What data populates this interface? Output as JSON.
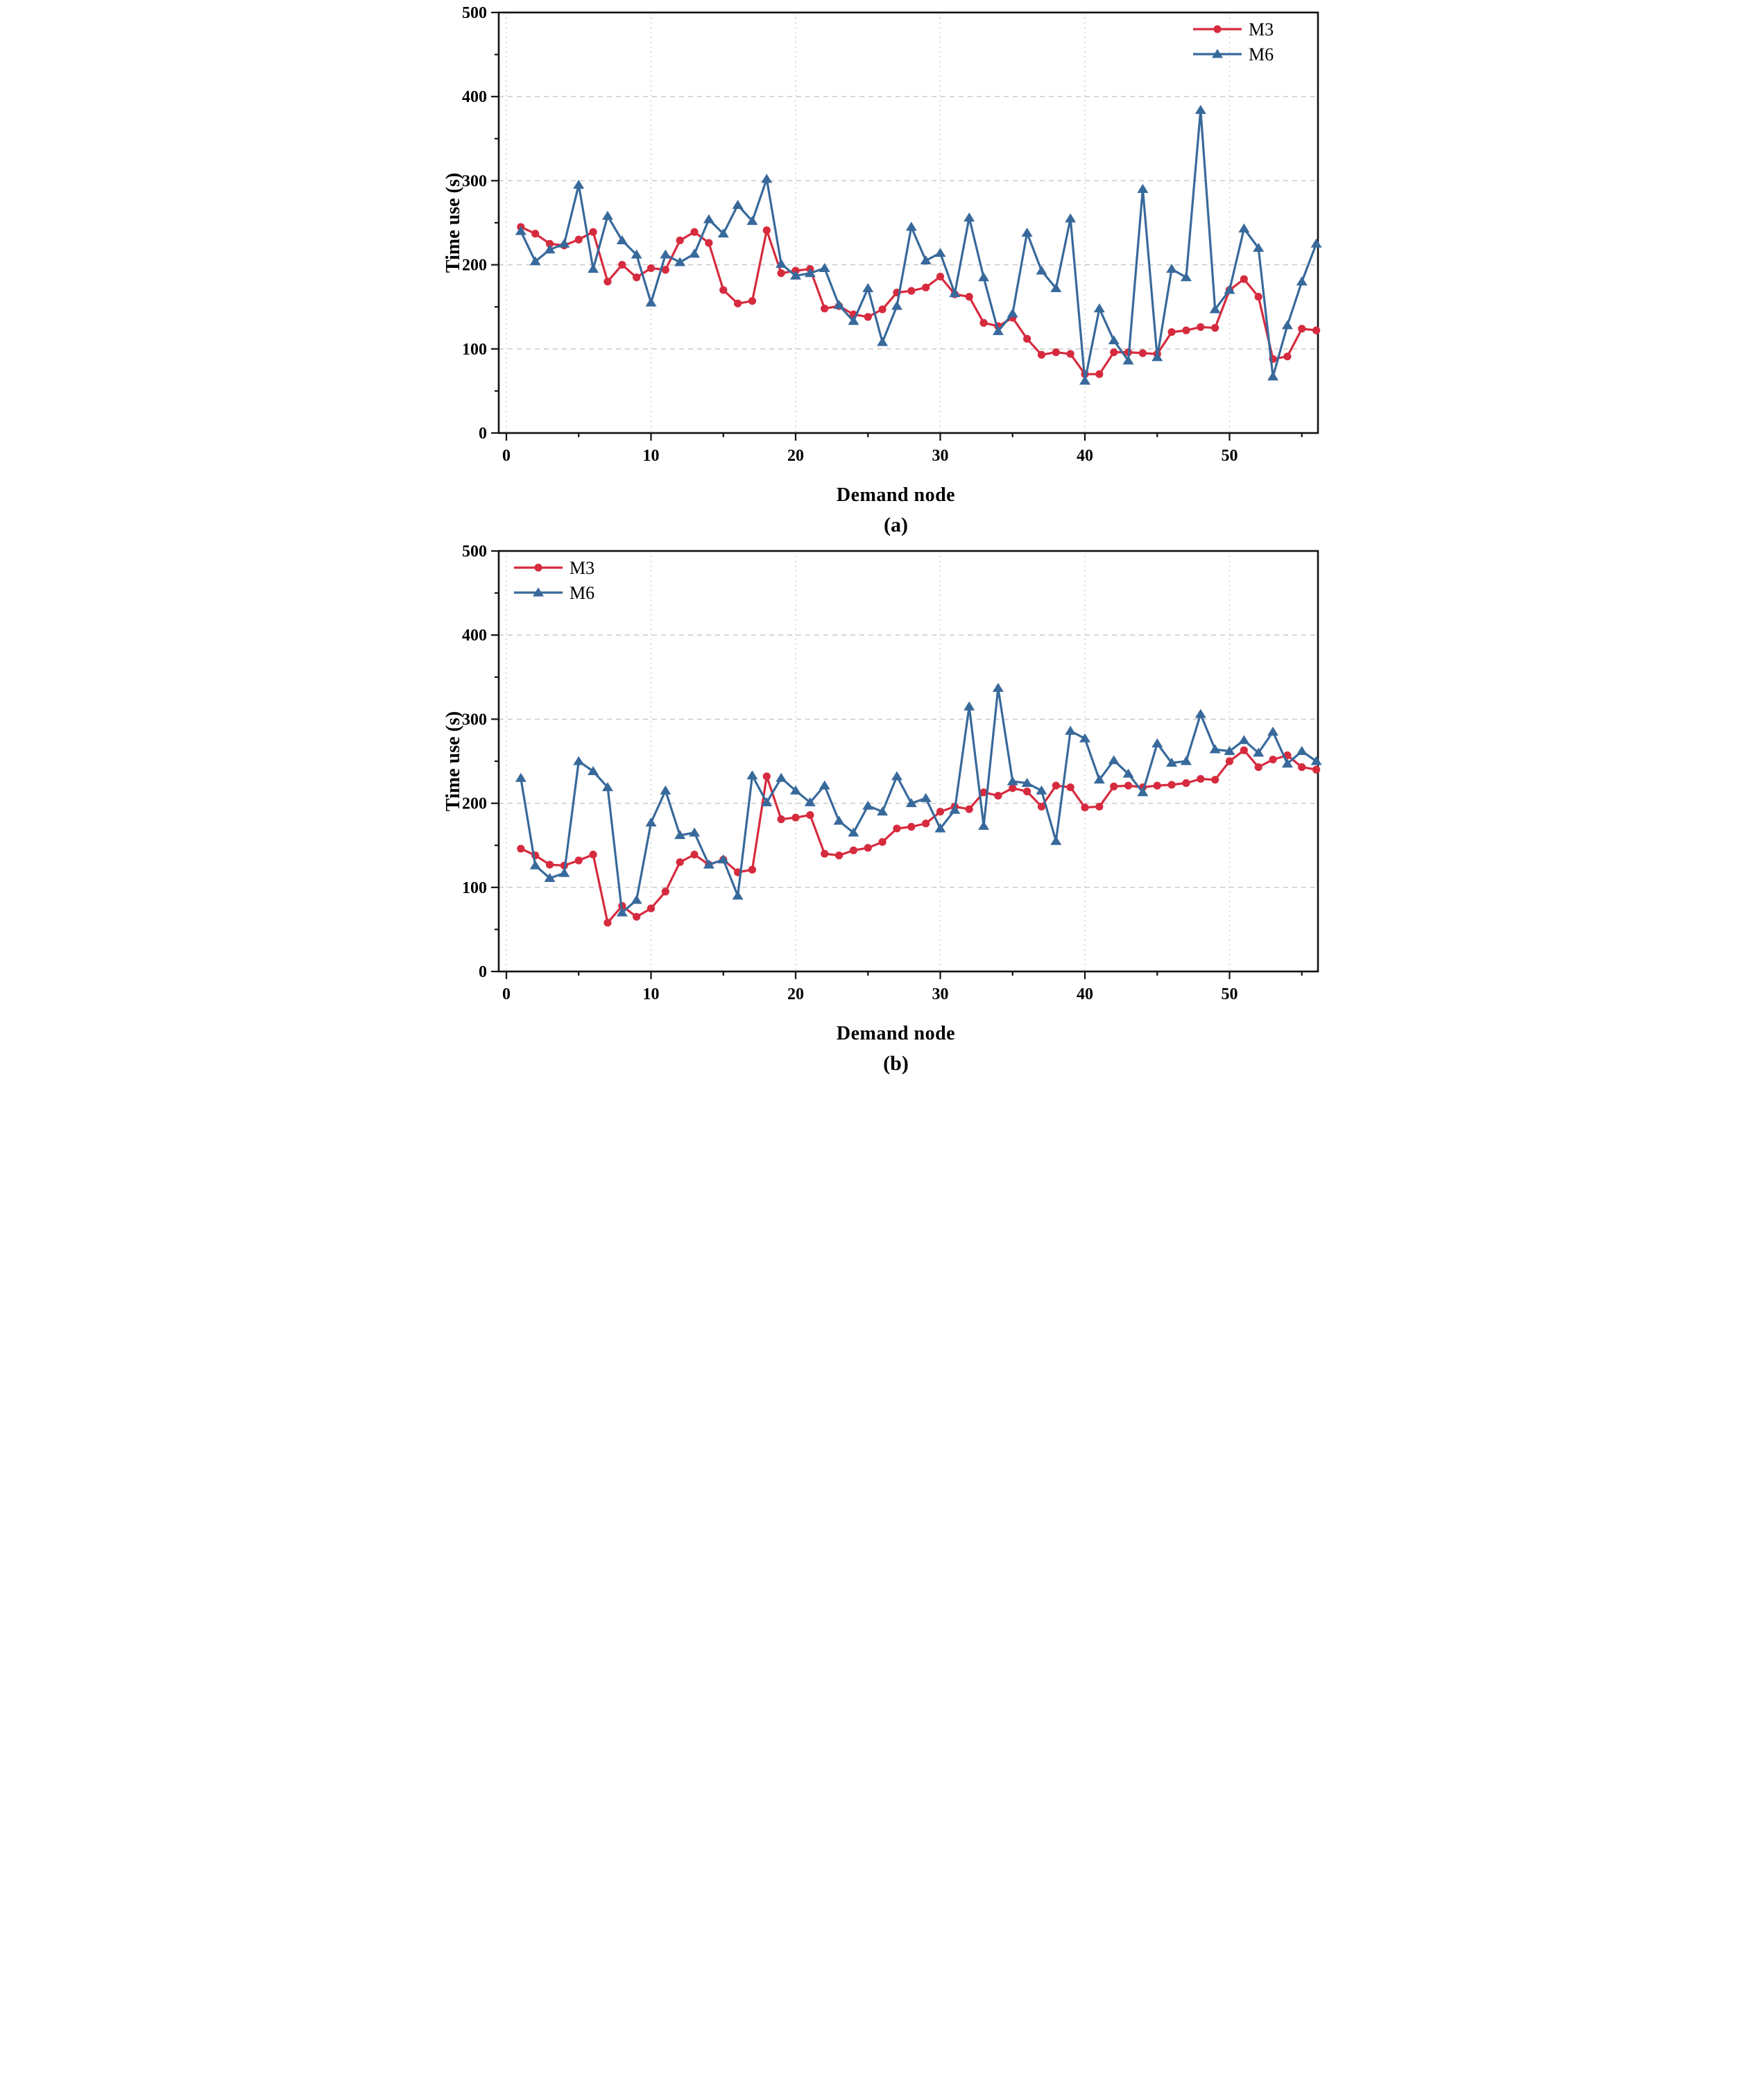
{
  "colors": {
    "m3": "#d62b3e",
    "m6": "#38699b",
    "grid_h": "#c6c6c6",
    "grid_v": "#cdcdcd",
    "axis": "#111111",
    "text": "#000000"
  },
  "chart_data": [
    {
      "id": "a",
      "type": "line",
      "caption": "(a)",
      "xlabel": "Demand node",
      "ylabel": "Time use (s)",
      "xlim": [
        0,
        56
      ],
      "ylim": [
        0,
        500
      ],
      "yticks": [
        0,
        100,
        200,
        300,
        400,
        500
      ],
      "xticks": [
        0,
        10,
        20,
        30,
        40,
        50
      ],
      "grid": true,
      "legend_position": "top-right",
      "x_start_node": 1,
      "series": [
        {
          "name": "M3",
          "marker": "circle",
          "color_key": "m3",
          "values": [
            245,
            237,
            225,
            223,
            230,
            239,
            180,
            200,
            185,
            196,
            194,
            229,
            239,
            226,
            170,
            154,
            157,
            241,
            190,
            193,
            195,
            148,
            151,
            141,
            138,
            147,
            167,
            169,
            173,
            186,
            165,
            162,
            131,
            127,
            137,
            112,
            93,
            96,
            94,
            70,
            70,
            96,
            96,
            95,
            94,
            120,
            122,
            126,
            125,
            170,
            183,
            162,
            88,
            91,
            124,
            122
          ]
        },
        {
          "name": "M6",
          "marker": "triangle",
          "color_key": "m6",
          "values": [
            240,
            204,
            218,
            225,
            295,
            195,
            258,
            229,
            212,
            155,
            212,
            203,
            213,
            254,
            237,
            271,
            252,
            302,
            201,
            187,
            190,
            196,
            152,
            133,
            172,
            108,
            151,
            245,
            205,
            214,
            166,
            256,
            185,
            121,
            142,
            238,
            193,
            172,
            255,
            62,
            148,
            110,
            86,
            290,
            90,
            195,
            185,
            384,
            147,
            170,
            243,
            220,
            67,
            128,
            180,
            225
          ]
        }
      ]
    },
    {
      "id": "b",
      "type": "line",
      "caption": "(b)",
      "xlabel": "Demand node",
      "ylabel": "Time use (s)",
      "xlim": [
        0,
        56
      ],
      "ylim": [
        0,
        500
      ],
      "yticks": [
        0,
        100,
        200,
        300,
        400,
        500
      ],
      "xticks": [
        0,
        10,
        20,
        30,
        40,
        50
      ],
      "grid": true,
      "legend_position": "top-left",
      "x_start_node": 1,
      "series": [
        {
          "name": "M3",
          "marker": "circle",
          "color_key": "m3",
          "values": [
            146,
            138,
            127,
            126,
            132,
            139,
            58,
            78,
            65,
            75,
            95,
            130,
            139,
            127,
            133,
            118,
            121,
            232,
            181,
            183,
            186,
            140,
            138,
            144,
            147,
            154,
            170,
            172,
            176,
            190,
            196,
            193,
            213,
            209,
            218,
            214,
            196,
            221,
            219,
            195,
            196,
            220,
            221,
            219,
            221,
            222,
            224,
            229,
            228,
            250,
            263,
            243,
            252,
            257,
            243,
            240
          ]
        },
        {
          "name": "M6",
          "marker": "triangle",
          "color_key": "m6",
          "values": [
            230,
            126,
            111,
            117,
            250,
            238,
            219,
            70,
            85,
            177,
            215,
            162,
            165,
            127,
            133,
            90,
            233,
            201,
            230,
            215,
            201,
            221,
            179,
            165,
            197,
            190,
            232,
            200,
            206,
            170,
            192,
            315,
            173,
            337,
            226,
            224,
            215,
            155,
            286,
            277,
            228,
            251,
            235,
            213,
            271,
            248,
            250,
            306,
            264,
            262,
            275,
            260,
            285,
            247,
            262,
            250
          ]
        }
      ]
    }
  ]
}
